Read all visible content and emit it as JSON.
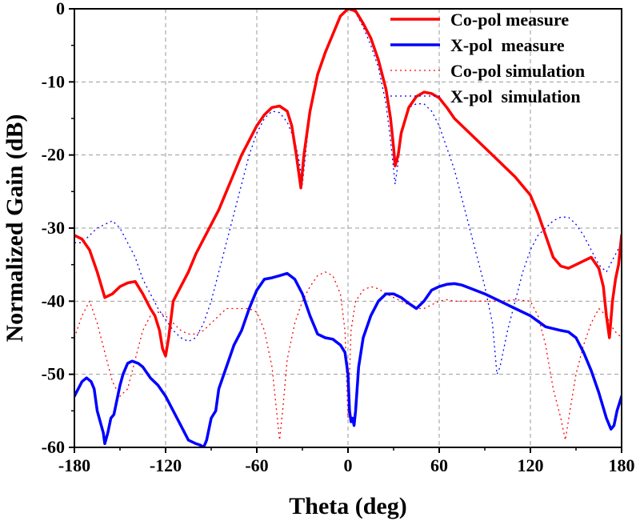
{
  "chart_data": {
    "type": "line",
    "xlabel": "Theta (deg)",
    "ylabel": "Normalized Gain (dB)",
    "xlim": [
      -180,
      180
    ],
    "ylim": [
      -60,
      0
    ],
    "xticks": [
      -180,
      -120,
      -60,
      0,
      60,
      120,
      180
    ],
    "yticks": [
      0,
      -10,
      -20,
      -30,
      -40,
      -50,
      -60
    ],
    "grid": true,
    "legend_position": "top-right",
    "series": [
      {
        "name": "Co-pol measure",
        "color": "#ff0000",
        "style": "solid",
        "points": [
          [
            -180,
            -31
          ],
          [
            -175,
            -31.5
          ],
          [
            -170,
            -33
          ],
          [
            -165,
            -36
          ],
          [
            -160,
            -39.5
          ],
          [
            -155,
            -39
          ],
          [
            -150,
            -38
          ],
          [
            -145,
            -37.5
          ],
          [
            -140,
            -37.3
          ],
          [
            -135,
            -39
          ],
          [
            -130,
            -41
          ],
          [
            -127,
            -42
          ],
          [
            -124,
            -44
          ],
          [
            -122,
            -46.5
          ],
          [
            -120,
            -47.5
          ],
          [
            -118,
            -45
          ],
          [
            -115,
            -40
          ],
          [
            -110,
            -38
          ],
          [
            -105,
            -36
          ],
          [
            -100,
            -33.5
          ],
          [
            -95,
            -31.5
          ],
          [
            -90,
            -29.5
          ],
          [
            -85,
            -27.5
          ],
          [
            -80,
            -25
          ],
          [
            -75,
            -22.5
          ],
          [
            -70,
            -20
          ],
          [
            -65,
            -18
          ],
          [
            -60,
            -16
          ],
          [
            -55,
            -14.5
          ],
          [
            -50,
            -13.5
          ],
          [
            -45,
            -13.3
          ],
          [
            -40,
            -14
          ],
          [
            -37,
            -16
          ],
          [
            -34,
            -20
          ],
          [
            -32,
            -23
          ],
          [
            -31,
            -24.5
          ],
          [
            -29,
            -20
          ],
          [
            -25,
            -14
          ],
          [
            -20,
            -9
          ],
          [
            -15,
            -6
          ],
          [
            -10,
            -3.5
          ],
          [
            -5,
            -1
          ],
          [
            0,
            0
          ],
          [
            5,
            -0.3
          ],
          [
            10,
            -2
          ],
          [
            15,
            -4
          ],
          [
            20,
            -7
          ],
          [
            25,
            -11
          ],
          [
            28,
            -15
          ],
          [
            30,
            -19
          ],
          [
            31,
            -21.5
          ],
          [
            33,
            -20
          ],
          [
            35,
            -17
          ],
          [
            40,
            -13.5
          ],
          [
            45,
            -12
          ],
          [
            50,
            -11.4
          ],
          [
            55,
            -11.6
          ],
          [
            60,
            -12.2
          ],
          [
            65,
            -13.5
          ],
          [
            70,
            -15
          ],
          [
            75,
            -16
          ],
          [
            80,
            -17
          ],
          [
            90,
            -19
          ],
          [
            100,
            -21
          ],
          [
            110,
            -23
          ],
          [
            120,
            -25.5
          ],
          [
            125,
            -28
          ],
          [
            130,
            -31
          ],
          [
            135,
            -34
          ],
          [
            140,
            -35.2
          ],
          [
            145,
            -35.5
          ],
          [
            150,
            -35
          ],
          [
            155,
            -34.5
          ],
          [
            160,
            -34
          ],
          [
            165,
            -35.5
          ],
          [
            168,
            -38
          ],
          [
            170,
            -42
          ],
          [
            172,
            -45
          ],
          [
            174,
            -40
          ],
          [
            176,
            -37
          ],
          [
            178,
            -35
          ],
          [
            180,
            -31
          ]
        ]
      },
      {
        "name": "X-pol  measure",
        "color": "#0000ff",
        "style": "solid",
        "points": [
          [
            -180,
            -53
          ],
          [
            -175,
            -51
          ],
          [
            -172,
            -50.5
          ],
          [
            -169,
            -51
          ],
          [
            -167,
            -52
          ],
          [
            -165,
            -55
          ],
          [
            -163,
            -56.5
          ],
          [
            -161,
            -58
          ],
          [
            -160,
            -59.5
          ],
          [
            -158,
            -58
          ],
          [
            -156,
            -56
          ],
          [
            -154,
            -55.5
          ],
          [
            -152,
            -53.5
          ],
          [
            -150,
            -51.5
          ],
          [
            -148,
            -50
          ],
          [
            -145,
            -48.5
          ],
          [
            -142,
            -48.2
          ],
          [
            -138,
            -48.5
          ],
          [
            -135,
            -49
          ],
          [
            -130,
            -50.5
          ],
          [
            -125,
            -51.5
          ],
          [
            -120,
            -53
          ],
          [
            -115,
            -55
          ],
          [
            -110,
            -57
          ],
          [
            -105,
            -59
          ],
          [
            -100,
            -59.5
          ],
          [
            -97,
            -59.7
          ],
          [
            -95,
            -60
          ],
          [
            -93,
            -59
          ],
          [
            -90,
            -56
          ],
          [
            -87,
            -55
          ],
          [
            -85,
            -52
          ],
          [
            -80,
            -49
          ],
          [
            -75,
            -46
          ],
          [
            -70,
            -44
          ],
          [
            -65,
            -41
          ],
          [
            -60,
            -38.5
          ],
          [
            -55,
            -37
          ],
          [
            -50,
            -36.8
          ],
          [
            -45,
            -36.5
          ],
          [
            -40,
            -36.2
          ],
          [
            -35,
            -37
          ],
          [
            -30,
            -39
          ],
          [
            -25,
            -42
          ],
          [
            -20,
            -44.5
          ],
          [
            -15,
            -45
          ],
          [
            -10,
            -45.2
          ],
          [
            -5,
            -46
          ],
          [
            -2,
            -47
          ],
          [
            0,
            -50
          ],
          [
            1,
            -55
          ],
          [
            2,
            -56.5
          ],
          [
            3,
            -56
          ],
          [
            4,
            -57
          ],
          [
            5,
            -55
          ],
          [
            7,
            -49
          ],
          [
            10,
            -45
          ],
          [
            15,
            -42
          ],
          [
            20,
            -40
          ],
          [
            25,
            -39
          ],
          [
            30,
            -39
          ],
          [
            35,
            -39.5
          ],
          [
            40,
            -40.3
          ],
          [
            45,
            -41
          ],
          [
            50,
            -40
          ],
          [
            55,
            -38.5
          ],
          [
            60,
            -38
          ],
          [
            65,
            -37.7
          ],
          [
            70,
            -37.6
          ],
          [
            75,
            -37.8
          ],
          [
            80,
            -38.2
          ],
          [
            90,
            -39
          ],
          [
            100,
            -40
          ],
          [
            110,
            -41
          ],
          [
            120,
            -42
          ],
          [
            130,
            -43.5
          ],
          [
            140,
            -44
          ],
          [
            145,
            -44.2
          ],
          [
            150,
            -45
          ],
          [
            155,
            -47
          ],
          [
            160,
            -49.5
          ],
          [
            165,
            -52.5
          ],
          [
            170,
            -56
          ],
          [
            173,
            -57.5
          ],
          [
            175,
            -57
          ],
          [
            177,
            -55
          ],
          [
            180,
            -53
          ]
        ]
      },
      {
        "name": "Co-pol simulation",
        "color": "#ff0000",
        "style": "dotted",
        "points": [
          [
            -180,
            -45
          ],
          [
            -175,
            -42
          ],
          [
            -170,
            -40
          ],
          [
            -165,
            -43
          ],
          [
            -160,
            -47
          ],
          [
            -155,
            -51
          ],
          [
            -150,
            -53
          ],
          [
            -145,
            -52
          ],
          [
            -140,
            -48
          ],
          [
            -135,
            -44
          ],
          [
            -130,
            -42
          ],
          [
            -125,
            -41.5
          ],
          [
            -120,
            -42
          ],
          [
            -115,
            -43
          ],
          [
            -110,
            -44
          ],
          [
            -105,
            -44.5
          ],
          [
            -100,
            -44.5
          ],
          [
            -95,
            -44
          ],
          [
            -90,
            -43
          ],
          [
            -85,
            -42
          ],
          [
            -80,
            -41
          ],
          [
            -75,
            -41
          ],
          [
            -70,
            -41
          ],
          [
            -65,
            -41
          ],
          [
            -60,
            -41.5
          ],
          [
            -55,
            -44
          ],
          [
            -50,
            -49
          ],
          [
            -47,
            -55
          ],
          [
            -45,
            -59
          ],
          [
            -43,
            -55
          ],
          [
            -40,
            -48
          ],
          [
            -35,
            -43
          ],
          [
            -30,
            -40
          ],
          [
            -25,
            -38
          ],
          [
            -20,
            -36.5
          ],
          [
            -15,
            -36
          ],
          [
            -10,
            -36.5
          ],
          [
            -5,
            -39
          ],
          [
            -2,
            -44
          ],
          [
            0,
            -56
          ],
          [
            2,
            -44
          ],
          [
            5,
            -40
          ],
          [
            10,
            -38.5
          ],
          [
            15,
            -38
          ],
          [
            20,
            -38.3
          ],
          [
            25,
            -39
          ],
          [
            30,
            -39.5
          ],
          [
            35,
            -40
          ],
          [
            40,
            -40.5
          ],
          [
            45,
            -41
          ],
          [
            50,
            -41
          ],
          [
            55,
            -40.5
          ],
          [
            60,
            -40
          ],
          [
            65,
            -39.8
          ],
          [
            70,
            -40
          ],
          [
            80,
            -40
          ],
          [
            90,
            -40
          ],
          [
            100,
            -40
          ],
          [
            110,
            -39.8
          ],
          [
            120,
            -40
          ],
          [
            125,
            -42
          ],
          [
            130,
            -46
          ],
          [
            135,
            -52
          ],
          [
            140,
            -56
          ],
          [
            143,
            -59
          ],
          [
            146,
            -55
          ],
          [
            150,
            -50
          ],
          [
            155,
            -46
          ],
          [
            160,
            -43
          ],
          [
            165,
            -41
          ],
          [
            170,
            -42
          ],
          [
            175,
            -44
          ],
          [
            180,
            -45
          ]
        ]
      },
      {
        "name": "X-pol  simulation",
        "color": "#0000ff",
        "style": "dotted",
        "points": [
          [
            -180,
            -32
          ],
          [
            -175,
            -32
          ],
          [
            -170,
            -31
          ],
          [
            -165,
            -30
          ],
          [
            -160,
            -29.5
          ],
          [
            -155,
            -29
          ],
          [
            -150,
            -30
          ],
          [
            -145,
            -32
          ],
          [
            -140,
            -34
          ],
          [
            -135,
            -37
          ],
          [
            -130,
            -39
          ],
          [
            -125,
            -41
          ],
          [
            -120,
            -42.5
          ],
          [
            -115,
            -44
          ],
          [
            -110,
            -45
          ],
          [
            -105,
            -45.5
          ],
          [
            -100,
            -45
          ],
          [
            -95,
            -43
          ],
          [
            -90,
            -40
          ],
          [
            -85,
            -36
          ],
          [
            -80,
            -32
          ],
          [
            -75,
            -28
          ],
          [
            -70,
            -24
          ],
          [
            -65,
            -20
          ],
          [
            -60,
            -17
          ],
          [
            -55,
            -15
          ],
          [
            -50,
            -14
          ],
          [
            -45,
            -14.2
          ],
          [
            -40,
            -15.5
          ],
          [
            -35,
            -18
          ],
          [
            -32,
            -21
          ],
          [
            -30,
            -24
          ],
          [
            -28,
            -20
          ],
          [
            -25,
            -14
          ],
          [
            -20,
            -9
          ],
          [
            -15,
            -6
          ],
          [
            -10,
            -3.5
          ],
          [
            -5,
            -1
          ],
          [
            0,
            0
          ],
          [
            5,
            -0.5
          ],
          [
            10,
            -2.5
          ],
          [
            15,
            -5
          ],
          [
            20,
            -8
          ],
          [
            25,
            -13
          ],
          [
            28,
            -18
          ],
          [
            30,
            -22
          ],
          [
            31,
            -24
          ],
          [
            33,
            -21
          ],
          [
            36,
            -16
          ],
          [
            40,
            -13.5
          ],
          [
            45,
            -13
          ],
          [
            50,
            -13
          ],
          [
            55,
            -14
          ],
          [
            60,
            -16
          ],
          [
            65,
            -19
          ],
          [
            70,
            -22
          ],
          [
            75,
            -26
          ],
          [
            80,
            -30
          ],
          [
            85,
            -34
          ],
          [
            90,
            -38
          ],
          [
            95,
            -43
          ],
          [
            98,
            -50
          ],
          [
            100,
            -49
          ],
          [
            105,
            -44
          ],
          [
            110,
            -40
          ],
          [
            115,
            -36
          ],
          [
            120,
            -33
          ],
          [
            125,
            -31
          ],
          [
            130,
            -30
          ],
          [
            135,
            -29
          ],
          [
            140,
            -28.5
          ],
          [
            145,
            -28.5
          ],
          [
            150,
            -29.5
          ],
          [
            155,
            -31
          ],
          [
            160,
            -33
          ],
          [
            165,
            -35
          ],
          [
            170,
            -36
          ],
          [
            175,
            -34
          ],
          [
            180,
            -32
          ]
        ]
      }
    ]
  }
}
